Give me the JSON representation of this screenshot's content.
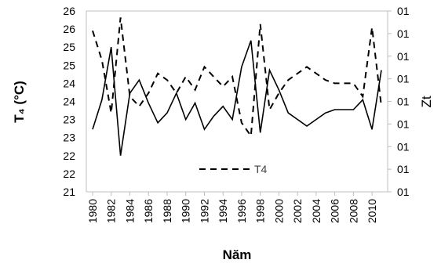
{
  "chart_data": {
    "type": "line",
    "title": "",
    "xlabel": "Năm",
    "ylabel": "T₄ (°C)",
    "y2label": "Zt",
    "ylim": [
      21,
      26.5
    ],
    "y_tick_labels": [
      "21",
      "22",
      "22",
      "23",
      "23",
      "24",
      "24",
      "25",
      "25",
      "26",
      "26"
    ],
    "y2_tick_labels": [
      "01",
      "01",
      "01",
      "01",
      "01",
      "01",
      "01",
      "01",
      "01"
    ],
    "x_ticks": [
      1980,
      1982,
      1984,
      1986,
      1988,
      1990,
      1992,
      1994,
      1996,
      1998,
      2000,
      2002,
      2004,
      2006,
      2008,
      2010
    ],
    "x": [
      1980,
      1981,
      1982,
      1983,
      1984,
      1985,
      1986,
      1987,
      1988,
      1989,
      1990,
      1991,
      1992,
      1993,
      1994,
      1995,
      1996,
      1997,
      1998,
      1999,
      2000,
      2001,
      2002,
      2003,
      2004,
      2005,
      2006,
      2007,
      2008,
      2009,
      2010,
      2011
    ],
    "legend_position": "bottom-center",
    "grid": false,
    "series": [
      {
        "name": "T4",
        "style": "dashed",
        "axis": "left",
        "values": [
          25.9,
          25.0,
          23.4,
          26.3,
          23.9,
          23.6,
          24.0,
          24.6,
          24.4,
          24.0,
          24.5,
          24.1,
          24.8,
          24.5,
          24.2,
          24.5,
          23.1,
          22.7,
          26.1,
          23.5,
          24.0,
          24.4,
          24.6,
          24.8,
          24.6,
          24.4,
          24.3,
          24.3,
          24.3,
          23.9,
          26.0,
          23.6
        ]
      },
      {
        "name": "",
        "style": "solid",
        "axis": "right",
        "values": [
          22.9,
          23.8,
          25.4,
          22.1,
          24.0,
          24.4,
          23.7,
          23.1,
          23.4,
          24.0,
          23.2,
          23.7,
          22.9,
          23.3,
          23.6,
          23.2,
          24.8,
          25.6,
          22.8,
          24.7,
          24.1,
          23.4,
          23.2,
          23.0,
          23.2,
          23.4,
          23.5,
          23.5,
          23.5,
          23.8,
          22.9,
          24.7
        ]
      }
    ]
  }
}
